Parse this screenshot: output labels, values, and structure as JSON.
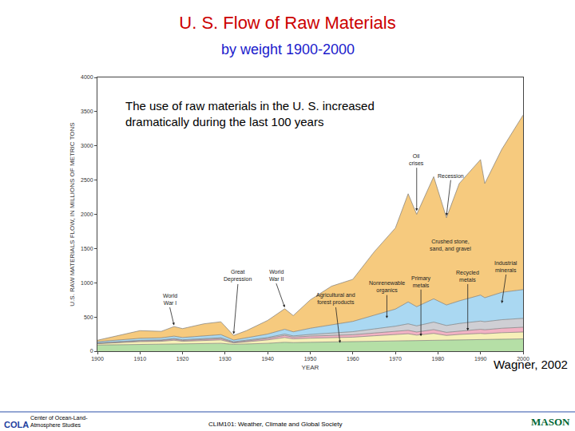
{
  "chart_data": {
    "type": "area",
    "stacked": true,
    "grid": false,
    "title": "U. S. Flow of Raw Materials",
    "subtitle": "by weight 1900-2000",
    "x_label": "YEAR",
    "y_label": "U.S. RAW MATERIALS FLOW, IN MILLIONS OF METRIC TONS",
    "x": [
      1900,
      1905,
      1910,
      1915,
      1918,
      1920,
      1925,
      1929,
      1932,
      1935,
      1940,
      1944,
      1946,
      1950,
      1955,
      1960,
      1965,
      1970,
      1973,
      1975,
      1979,
      1982,
      1985,
      1990,
      1991,
      1995,
      2000
    ],
    "series": [
      {
        "name": "Agricultural and forest products",
        "color": "#b5dfa6",
        "values": [
          90,
          95,
          100,
          105,
          110,
          105,
          110,
          115,
          100,
          105,
          115,
          130,
          125,
          130,
          135,
          140,
          145,
          150,
          155,
          150,
          160,
          160,
          165,
          170,
          170,
          175,
          180
        ]
      },
      {
        "name": "Primary metals",
        "color": "#f7f0b8",
        "values": [
          20,
          30,
          40,
          40,
          50,
          40,
          45,
          50,
          20,
          30,
          50,
          70,
          55,
          60,
          65,
          65,
          80,
          90,
          100,
          85,
          100,
          70,
          80,
          90,
          85,
          95,
          100
        ]
      },
      {
        "name": "Recycled metals",
        "color": "#f2b3c4",
        "values": [
          5,
          8,
          10,
          12,
          15,
          12,
          15,
          18,
          8,
          12,
          20,
          30,
          25,
          30,
          30,
          35,
          40,
          45,
          50,
          45,
          55,
          45,
          50,
          60,
          58,
          65,
          70
        ]
      },
      {
        "name": "Nonrenewable organics",
        "color": "#cfcfd4",
        "values": [
          5,
          6,
          8,
          8,
          10,
          10,
          12,
          14,
          10,
          12,
          15,
          20,
          18,
          25,
          35,
          45,
          60,
          80,
          95,
          90,
          110,
          100,
          110,
          120,
          118,
          125,
          130
        ]
      },
      {
        "name": "Industrial minerals",
        "color": "#aad8f2",
        "values": [
          20,
          25,
          30,
          30,
          35,
          33,
          40,
          45,
          25,
          35,
          50,
          70,
          60,
          90,
          120,
          150,
          200,
          250,
          320,
          280,
          340,
          300,
          330,
          380,
          350,
          400,
          420
        ]
      },
      {
        "name": "Crushed stone, sand, and gravel",
        "color": "#f6ca7e",
        "values": [
          20,
          66,
          112,
          95,
          140,
          130,
          178,
          188,
          67,
          106,
          200,
          300,
          237,
          415,
          565,
          615,
          925,
          1185,
          1580,
          1350,
          1785,
          1275,
          1715,
          1980,
          1669,
          2090,
          2550
        ]
      }
    ],
    "xlim": [
      1900,
      2000
    ],
    "xticks": [
      1900,
      1910,
      1920,
      1930,
      1940,
      1950,
      1960,
      1970,
      1980,
      1990,
      2000
    ],
    "ylim": [
      0,
      4000
    ],
    "yticks": [
      0,
      500,
      1000,
      1500,
      2000,
      2500,
      3000,
      3500,
      4000
    ],
    "annotations": [
      {
        "text": "World\nWar I",
        "x": 1918,
        "y": 380,
        "tx": 1917,
        "ty": 640
      },
      {
        "text": "Great\nDepression",
        "x": 1932,
        "y": 250,
        "tx": 1933,
        "ty": 980
      },
      {
        "text": "World\nWar II",
        "x": 1944,
        "y": 640,
        "tx": 1942,
        "ty": 990
      },
      {
        "text": "Oil\ncrises",
        "x": 1975,
        "y": 2050,
        "tx": 1975,
        "ty": 2680
      },
      {
        "text": "Recession",
        "x": 1982,
        "y": 1980,
        "tx": 1983,
        "ty": 2500
      },
      {
        "text": "Crushed stone,\nsand, and gravel",
        "x": 1983,
        "y": 1540
      },
      {
        "text": "Agricultural and\nforest products",
        "x": 1957,
        "y": 120,
        "tx": 1956,
        "ty": 640
      },
      {
        "text": "Nonrenewable\norganics",
        "x": 1968,
        "y": 480,
        "tx": 1968,
        "ty": 820
      },
      {
        "text": "Primary\nmetals",
        "x": 1976,
        "y": 220,
        "tx": 1976,
        "ty": 900
      },
      {
        "text": "Recycled\nmetals",
        "x": 1987,
        "y": 300,
        "tx": 1987,
        "ty": 980
      },
      {
        "text": "Industrial\nminerals",
        "x": 1995,
        "y": 700,
        "tx": 1996,
        "ty": 1120
      }
    ]
  },
  "slide": {
    "note": "The use of raw materials in the U. S. increased\ndramatically during the last 100 years",
    "source": "Wagner, 2002",
    "footer": {
      "org": "Center of Ocean-Land-\nAtmosphere Studies",
      "org_logo": "COLA",
      "course": "CLIM101: Weather, Climate and Global Society",
      "logo": "MASON"
    }
  }
}
